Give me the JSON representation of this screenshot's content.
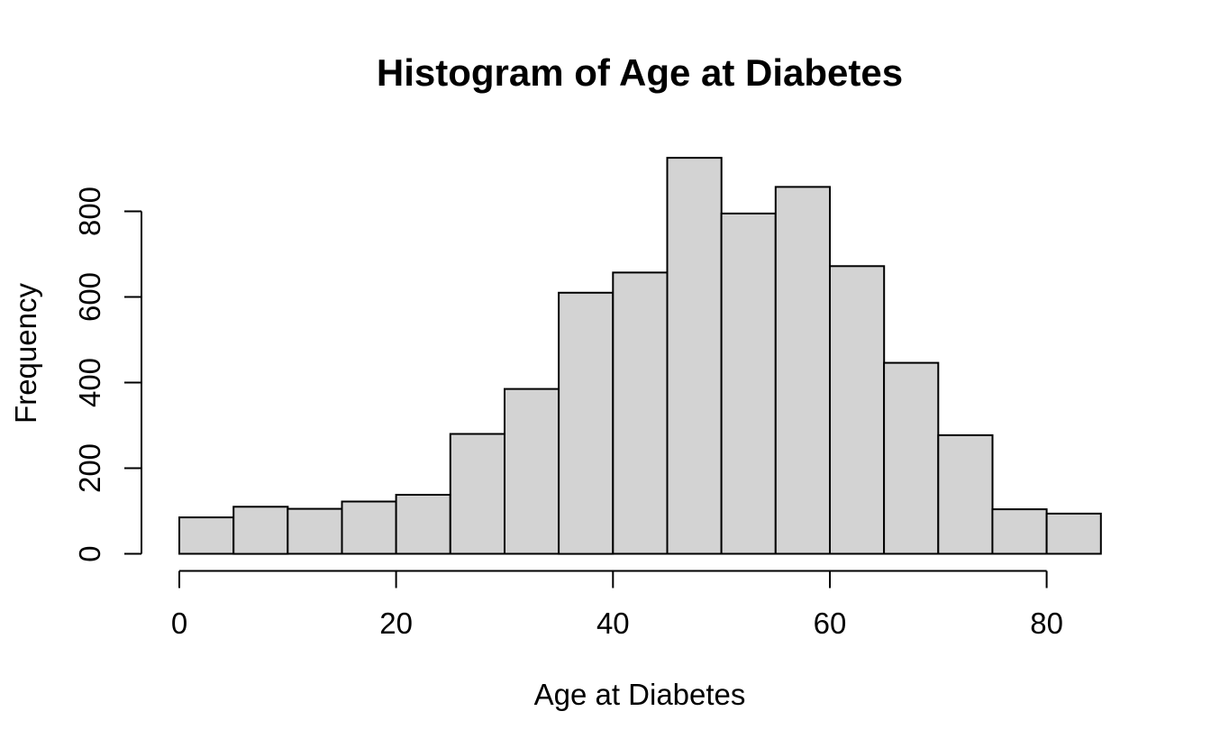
{
  "chart_data": {
    "type": "bar",
    "subtype": "histogram",
    "title": "Histogram of Age at Diabetes",
    "xlabel": "Age at Diabetes",
    "ylabel": "Frequency",
    "bin_edges": [
      0,
      5,
      10,
      15,
      20,
      25,
      30,
      35,
      40,
      45,
      50,
      55,
      60,
      65,
      70,
      75,
      80,
      85
    ],
    "counts": [
      85,
      110,
      105,
      122,
      138,
      280,
      385,
      610,
      657,
      925,
      795,
      857,
      672,
      446,
      277,
      104,
      94
    ],
    "x_ticks": [
      0,
      20,
      40,
      60,
      80
    ],
    "y_ticks": [
      0,
      200,
      400,
      600,
      800
    ],
    "xlim": [
      0,
      85
    ],
    "ylim": [
      0,
      925
    ],
    "grid": false,
    "legend": "none",
    "bar_fill": "#d3d3d3",
    "bar_stroke": "#000000",
    "axis_color": "#000000",
    "text_color": "#000000",
    "background": "#ffffff"
  }
}
